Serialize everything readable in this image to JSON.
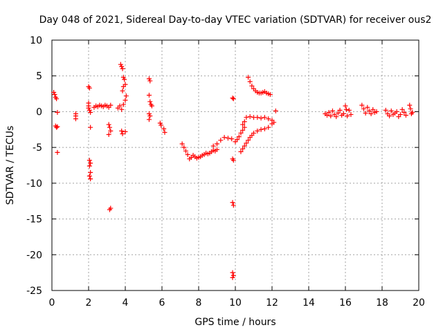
{
  "chart_data": {
    "type": "scatter",
    "title": "Day 048 of 2021, Sidereal Day-to-day VTEC variation (SDTVAR) for receiver ous2",
    "xlabel": "GPS time / hours",
    "ylabel": "SDTVAR / TECUs",
    "xlim": [
      0,
      20
    ],
    "ylim": [
      -25,
      10
    ],
    "xticks": [
      0,
      2,
      4,
      6,
      8,
      10,
      12,
      14,
      16,
      18,
      20
    ],
    "yticks": [
      10,
      5,
      0,
      -5,
      -10,
      -15,
      -20,
      -25
    ],
    "xtick_labels": [
      "0",
      "2",
      "4",
      "6",
      "8",
      "10",
      "12",
      "14",
      "16",
      "18",
      "20"
    ],
    "ytick_labels": [
      "10",
      "5",
      "0",
      "-5",
      "-10",
      "-15",
      "-20",
      "-25"
    ],
    "grid": true,
    "marker": "plus",
    "marker_color": "#ff0000",
    "series": [
      {
        "name": "ous2",
        "points": [
          [
            0.1,
            2.7
          ],
          [
            0.15,
            2.4
          ],
          [
            0.2,
            2.0
          ],
          [
            0.25,
            1.8
          ],
          [
            0.2,
            -2.0
          ],
          [
            0.25,
            -2.2
          ],
          [
            0.3,
            -2.1
          ],
          [
            0.3,
            -0.1
          ],
          [
            0.3,
            -5.7
          ],
          [
            1.3,
            -0.3
          ],
          [
            1.3,
            -0.6
          ],
          [
            1.3,
            -1.0
          ],
          [
            2.0,
            3.5
          ],
          [
            2.05,
            3.3
          ],
          [
            2.0,
            1.2
          ],
          [
            2.0,
            0.5
          ],
          [
            2.05,
            0.2
          ],
          [
            2.1,
            -0.1
          ],
          [
            2.0,
            0.8
          ],
          [
            2.1,
            -2.2
          ],
          [
            2.05,
            -6.8
          ],
          [
            2.1,
            -7.2
          ],
          [
            2.05,
            -7.6
          ],
          [
            2.1,
            -8.5
          ],
          [
            2.05,
            -9.0
          ],
          [
            2.1,
            -9.4
          ],
          [
            2.3,
            0.6
          ],
          [
            2.4,
            0.8
          ],
          [
            2.5,
            0.7
          ],
          [
            2.6,
            0.9
          ],
          [
            2.7,
            0.8
          ],
          [
            2.8,
            0.7
          ],
          [
            2.9,
            0.9
          ],
          [
            3.0,
            0.8
          ],
          [
            3.1,
            0.6
          ],
          [
            3.2,
            0.9
          ],
          [
            3.1,
            -1.8
          ],
          [
            3.15,
            -2.2
          ],
          [
            3.2,
            -2.7
          ],
          [
            3.1,
            -3.2
          ],
          [
            3.15,
            -13.7
          ],
          [
            3.2,
            -13.5
          ],
          [
            3.6,
            0.5
          ],
          [
            3.7,
            0.8
          ],
          [
            3.8,
            0.3
          ],
          [
            3.9,
            1.0
          ],
          [
            3.75,
            6.6
          ],
          [
            3.8,
            6.3
          ],
          [
            3.85,
            6.0
          ],
          [
            3.9,
            4.8
          ],
          [
            3.95,
            4.5
          ],
          [
            3.9,
            3.5
          ],
          [
            3.85,
            2.9
          ],
          [
            4.0,
            3.8
          ],
          [
            4.05,
            2.2
          ],
          [
            4.0,
            1.6
          ],
          [
            3.8,
            -2.7
          ],
          [
            3.85,
            -3.1
          ],
          [
            4.0,
            -2.8
          ],
          [
            5.3,
            4.6
          ],
          [
            5.35,
            4.3
          ],
          [
            5.3,
            2.3
          ],
          [
            5.35,
            1.4
          ],
          [
            5.4,
            1.0
          ],
          [
            5.45,
            0.8
          ],
          [
            5.3,
            -0.3
          ],
          [
            5.35,
            -0.6
          ],
          [
            5.3,
            -1.1
          ],
          [
            5.9,
            -1.6
          ],
          [
            5.95,
            -1.9
          ],
          [
            6.1,
            -2.4
          ],
          [
            6.15,
            -2.9
          ],
          [
            7.1,
            -4.5
          ],
          [
            7.2,
            -5.0
          ],
          [
            7.3,
            -5.5
          ],
          [
            7.4,
            -6.0
          ],
          [
            7.5,
            -6.6
          ],
          [
            7.6,
            -6.4
          ],
          [
            7.7,
            -6.1
          ],
          [
            7.8,
            -6.3
          ],
          [
            7.9,
            -6.5
          ],
          [
            8.0,
            -6.4
          ],
          [
            8.1,
            -6.3
          ],
          [
            8.2,
            -6.1
          ],
          [
            8.3,
            -6.0
          ],
          [
            8.4,
            -5.8
          ],
          [
            8.5,
            -5.9
          ],
          [
            8.6,
            -5.8
          ],
          [
            8.7,
            -5.6
          ],
          [
            8.8,
            -5.4
          ],
          [
            8.9,
            -5.5
          ],
          [
            9.0,
            -5.3
          ],
          [
            8.8,
            -4.8
          ],
          [
            9.0,
            -4.5
          ],
          [
            9.2,
            -4.0
          ],
          [
            9.4,
            -3.6
          ],
          [
            9.6,
            -3.7
          ],
          [
            9.8,
            -3.8
          ],
          [
            9.85,
            1.9
          ],
          [
            9.9,
            1.8
          ],
          [
            9.85,
            -6.6
          ],
          [
            9.9,
            -6.8
          ],
          [
            9.85,
            -12.7
          ],
          [
            9.9,
            -13.1
          ],
          [
            9.85,
            -22.5
          ],
          [
            9.9,
            -22.9
          ],
          [
            9.85,
            -23.2
          ],
          [
            10.0,
            -4.2
          ],
          [
            10.1,
            -3.9
          ],
          [
            10.2,
            -3.5
          ],
          [
            10.3,
            -3.0
          ],
          [
            10.4,
            -2.6
          ],
          [
            10.5,
            -2.2
          ],
          [
            10.4,
            -1.8
          ],
          [
            10.5,
            -1.4
          ],
          [
            10.6,
            -0.8
          ],
          [
            10.8,
            -0.7
          ],
          [
            11.0,
            -0.8
          ],
          [
            11.2,
            -0.8
          ],
          [
            11.4,
            -0.9
          ],
          [
            11.6,
            -0.8
          ],
          [
            11.8,
            -1.0
          ],
          [
            12.0,
            -1.2
          ],
          [
            12.1,
            -1.5
          ],
          [
            12.2,
            0.1
          ],
          [
            10.3,
            -5.6
          ],
          [
            10.4,
            -5.2
          ],
          [
            10.5,
            -4.8
          ],
          [
            10.6,
            -4.4
          ],
          [
            10.7,
            -4.0
          ],
          [
            10.8,
            -3.6
          ],
          [
            10.9,
            -3.3
          ],
          [
            11.0,
            -3.0
          ],
          [
            11.2,
            -2.7
          ],
          [
            11.4,
            -2.5
          ],
          [
            11.6,
            -2.4
          ],
          [
            11.8,
            -2.2
          ],
          [
            12.0,
            -1.7
          ],
          [
            10.7,
            4.8
          ],
          [
            10.8,
            4.2
          ],
          [
            10.9,
            3.6
          ],
          [
            11.0,
            3.2
          ],
          [
            11.1,
            2.9
          ],
          [
            11.2,
            2.7
          ],
          [
            11.3,
            2.6
          ],
          [
            11.4,
            2.6
          ],
          [
            11.5,
            2.7
          ],
          [
            11.6,
            2.8
          ],
          [
            11.7,
            2.6
          ],
          [
            11.8,
            2.5
          ],
          [
            11.9,
            2.4
          ],
          [
            14.9,
            -0.3
          ],
          [
            15.0,
            -0.5
          ],
          [
            15.1,
            -0.1
          ],
          [
            15.2,
            -0.6
          ],
          [
            15.3,
            0.1
          ],
          [
            15.4,
            -0.4
          ],
          [
            15.5,
            -0.7
          ],
          [
            15.6,
            -0.2
          ],
          [
            15.7,
            0.2
          ],
          [
            15.8,
            -0.5
          ],
          [
            15.9,
            -0.3
          ],
          [
            16.0,
            0.8
          ],
          [
            16.05,
            0.3
          ],
          [
            16.1,
            -0.6
          ],
          [
            16.2,
            0.2
          ],
          [
            16.3,
            -0.4
          ],
          [
            16.9,
            0.9
          ],
          [
            17.0,
            0.4
          ],
          [
            17.1,
            -0.2
          ],
          [
            17.2,
            0.6
          ],
          [
            17.3,
            0.1
          ],
          [
            17.4,
            -0.3
          ],
          [
            17.5,
            0.3
          ],
          [
            17.6,
            -0.1
          ],
          [
            17.7,
            0.0
          ],
          [
            18.2,
            0.2
          ],
          [
            18.3,
            -0.3
          ],
          [
            18.4,
            -0.6
          ],
          [
            18.5,
            0.1
          ],
          [
            18.6,
            -0.4
          ],
          [
            18.7,
            -0.2
          ],
          [
            18.8,
            0.0
          ],
          [
            18.9,
            -0.7
          ],
          [
            19.0,
            -0.4
          ],
          [
            19.1,
            0.3
          ],
          [
            19.2,
            -0.1
          ],
          [
            19.3,
            -0.5
          ],
          [
            19.5,
            0.9
          ],
          [
            19.55,
            0.4
          ],
          [
            19.6,
            -0.3
          ],
          [
            19.65,
            -0.1
          ]
        ]
      }
    ]
  }
}
